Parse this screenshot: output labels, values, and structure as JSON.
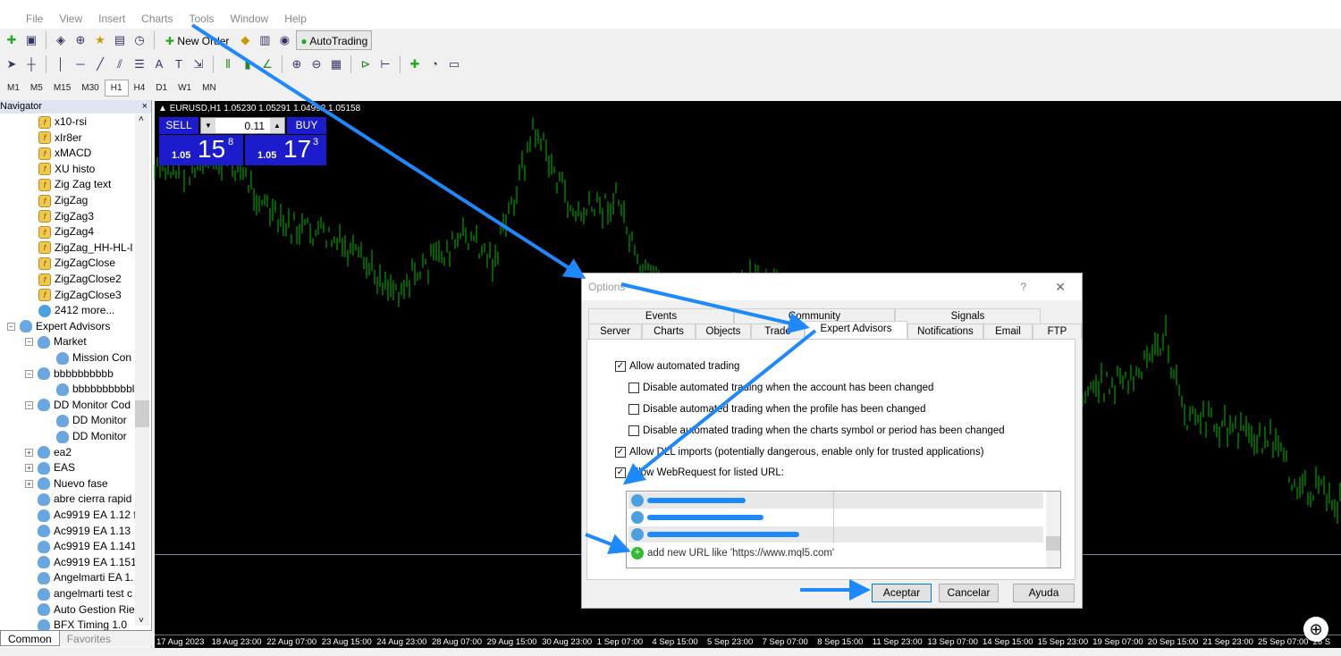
{
  "menu": [
    "File",
    "View",
    "Insert",
    "Charts",
    "Tools",
    "Window",
    "Help"
  ],
  "toolbar": {
    "new_order": "New Order",
    "autotrading": "AutoTrading"
  },
  "timeframes": [
    "M1",
    "M5",
    "M15",
    "M30",
    "H1",
    "H4",
    "D1",
    "W1",
    "MN"
  ],
  "active_timeframe": "H1",
  "navigator": {
    "title": "Navigator",
    "close": "×",
    "items": [
      {
        "label": "x10-rsi",
        "type": "indicator"
      },
      {
        "label": "xIr8er",
        "type": "indicator"
      },
      {
        "label": "xMACD",
        "type": "indicator"
      },
      {
        "label": "XU histo",
        "type": "indicator"
      },
      {
        "label": "Zig Zag text",
        "type": "indicator"
      },
      {
        "label": "ZigZag",
        "type": "indicator"
      },
      {
        "label": "ZigZag3",
        "type": "indicator"
      },
      {
        "label": "ZigZag4",
        "type": "indicator"
      },
      {
        "label": "ZigZag_HH-HL-l",
        "type": "indicator"
      },
      {
        "label": "ZigZagClose",
        "type": "indicator"
      },
      {
        "label": "ZigZagClose2",
        "type": "indicator"
      },
      {
        "label": "ZigZagClose3",
        "type": "indicator"
      },
      {
        "label": "2412 more...",
        "type": "globe"
      },
      {
        "label": "Expert Advisors",
        "type": "ea",
        "level": 0,
        "expander": "−"
      },
      {
        "label": "Market",
        "type": "ea",
        "level": 1,
        "expander": "−"
      },
      {
        "label": "Mission Con",
        "type": "ea",
        "level": 2
      },
      {
        "label": "bbbbbbbbbb",
        "type": "ea",
        "level": 1,
        "expander": "−"
      },
      {
        "label": "bbbbbbbbbbl",
        "type": "ea",
        "level": 2
      },
      {
        "label": "DD Monitor Cod",
        "type": "ea",
        "level": 1,
        "expander": "−"
      },
      {
        "label": "DD Monitor",
        "type": "ea",
        "level": 2
      },
      {
        "label": "DD Monitor",
        "type": "ea",
        "level": 2
      },
      {
        "label": "ea2",
        "type": "ea",
        "level": 1,
        "expander": "+"
      },
      {
        "label": "EAS",
        "type": "ea",
        "level": 1,
        "expander": "+"
      },
      {
        "label": "Nuevo fase",
        "type": "ea",
        "level": 1,
        "expander": "+"
      },
      {
        "label": "abre cierra rapid",
        "type": "ea",
        "level": 1
      },
      {
        "label": "Ac9919 EA 1.12 f",
        "type": "ea",
        "level": 1
      },
      {
        "label": "Ac9919 EA 1.13",
        "type": "ea",
        "level": 1
      },
      {
        "label": "Ac9919 EA 1.141",
        "type": "ea",
        "level": 1
      },
      {
        "label": "Ac9919 EA 1.151",
        "type": "ea",
        "level": 1
      },
      {
        "label": "Angelmarti EA 1.",
        "type": "ea",
        "level": 1
      },
      {
        "label": "angelmarti test c",
        "type": "ea",
        "level": 1
      },
      {
        "label": "Auto Gestion Rie",
        "type": "ea",
        "level": 1
      },
      {
        "label": "BFX Timing 1.0",
        "type": "ea",
        "level": 1
      }
    ],
    "tabs": [
      "Common",
      "Favorites"
    ]
  },
  "chart": {
    "header": "EURUSD,H1  1.05230 1.05291 1.04992 1.05158",
    "sell_label": "SELL",
    "buy_label": "BUY",
    "lot": "0.11",
    "sell_price": {
      "prefix": "1.05",
      "big": "15",
      "sup": "8"
    },
    "buy_price": {
      "prefix": "1.05",
      "big": "17",
      "sup": "3"
    },
    "time_labels": [
      "17 Aug 2023",
      "18 Aug 23:00",
      "22 Aug 07:00",
      "23 Aug 15:00",
      "24 Aug 23:00",
      "28 Aug 07:00",
      "29 Aug 15:00",
      "30 Aug 23:00",
      "1 Sep 07:00",
      "4 Sep 15:00",
      "5 Sep 23:00",
      "7 Sep 07:00",
      "8 Sep 15:00",
      "11 Sep 23:00",
      "13 Sep 07:00",
      "14 Sep 15:00",
      "15 Sep 23:00",
      "19 Sep 07:00",
      "20 Sep 15:00",
      "21 Sep 23:00",
      "25 Sep 07:00",
      "26 S"
    ],
    "bar_color": "#00c000"
  },
  "dialog": {
    "title": "Options",
    "help": "?",
    "close": "✕",
    "tabs_top": [
      "Events",
      "Community",
      "Signals"
    ],
    "tabs_bottom": [
      "Server",
      "Charts",
      "Objects",
      "Trade",
      "Expert Advisors",
      "Notifications",
      "Email",
      "FTP"
    ],
    "active_tab": "Expert Advisors",
    "options": [
      {
        "label": "Allow automated trading",
        "checked": true
      },
      {
        "label": "Disable automated trading when the account has been changed",
        "checked": false
      },
      {
        "label": "Disable automated trading when the profile has been changed",
        "checked": false
      },
      {
        "label": "Disable automated trading when the charts symbol or period has been changed",
        "checked": false
      },
      {
        "label": "Allow DLL imports (potentially dangerous, enable only for trusted applications)",
        "checked": true
      },
      {
        "label": "Allow WebRequest for listed URL:",
        "checked": true
      }
    ],
    "add_url": "add new URL like 'https://www.mql5.com'",
    "buttons": [
      "Aceptar",
      "Cancelar",
      "Ayuda"
    ]
  },
  "colors": {
    "annotation_arrow": "#1e88ff",
    "sell_buy_panel": "#1c1ccc"
  }
}
